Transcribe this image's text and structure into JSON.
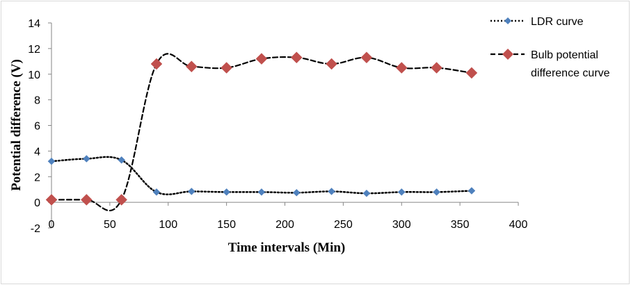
{
  "chart_data": {
    "type": "line",
    "xlabel": "Time intervals  (Min)",
    "ylabel": "Potential difference  (V)",
    "xlim": [
      0,
      400
    ],
    "ylim": [
      -2,
      14
    ],
    "xticks": [
      0,
      50,
      100,
      150,
      200,
      250,
      300,
      350,
      400
    ],
    "yticks": [
      -2,
      0,
      2,
      4,
      6,
      8,
      10,
      12,
      14
    ],
    "grid": false,
    "legend_position": "right",
    "series": [
      {
        "name": "LDR curve",
        "line_style": "dotted",
        "marker": "diamond",
        "line_color": "#000000",
        "marker_color": "#4f81bd",
        "x": [
          0,
          30,
          60,
          90,
          120,
          150,
          180,
          210,
          240,
          270,
          300,
          330,
          360
        ],
        "y": [
          3.2,
          3.4,
          3.3,
          0.8,
          0.85,
          0.8,
          0.8,
          0.75,
          0.85,
          0.7,
          0.8,
          0.8,
          0.9
        ]
      },
      {
        "name": "Bulb potential difference curve",
        "legend_lines": [
          "Bulb potential",
          "difference curve"
        ],
        "line_style": "dashed",
        "marker": "diamond",
        "line_color": "#000000",
        "marker_color": "#c0504d",
        "x": [
          0,
          30,
          60,
          90,
          120,
          150,
          180,
          210,
          240,
          270,
          300,
          330,
          360
        ],
        "y": [
          0.2,
          0.2,
          0.2,
          10.8,
          10.6,
          10.5,
          11.2,
          11.3,
          10.8,
          11.3,
          10.5,
          10.5,
          10.1
        ]
      }
    ]
  }
}
